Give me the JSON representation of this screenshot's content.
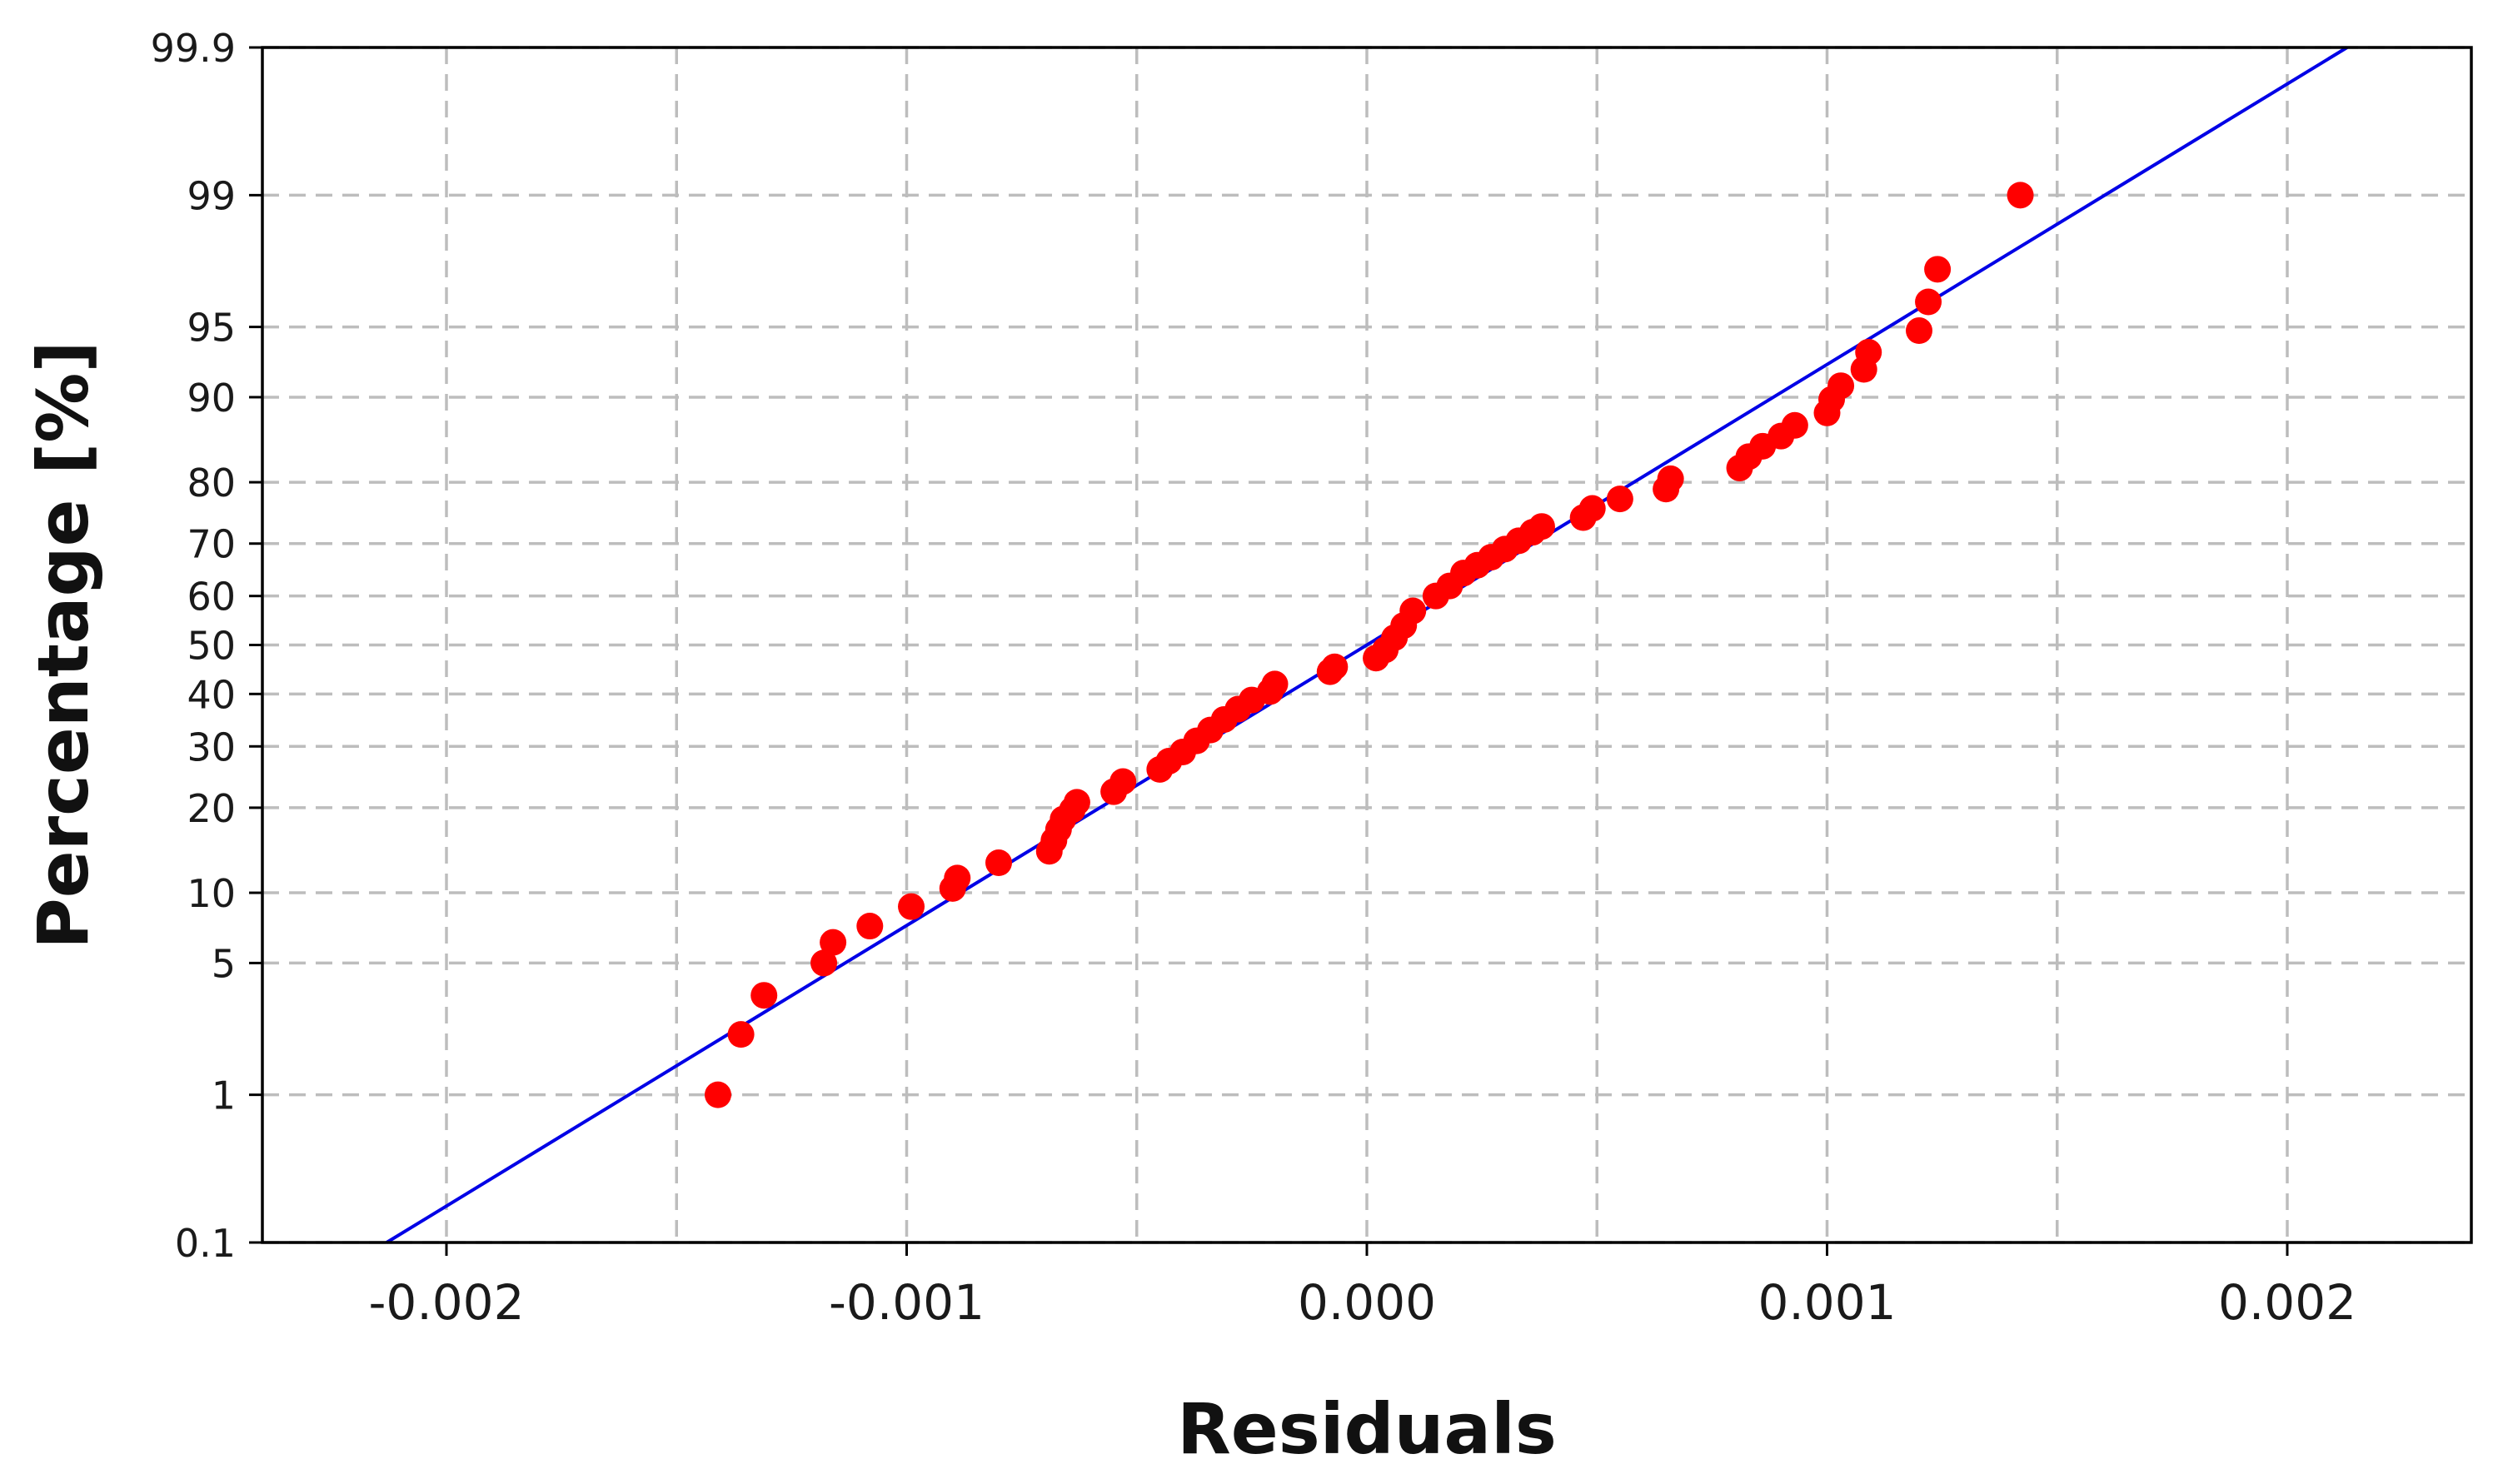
{
  "chart_data": {
    "type": "scatter",
    "title": "",
    "xlabel": "Residuals",
    "ylabel": "Percentage [%]",
    "xlim": [
      -0.0024,
      0.0024
    ],
    "ylim": [
      0.1,
      99.9
    ],
    "y_scale": "normal-probability",
    "grid": true,
    "grid_style": "dashed",
    "x_ticks": [
      -0.002,
      -0.0015,
      -0.001,
      -0.0005,
      0.0,
      0.0005,
      0.001,
      0.0015,
      0.002
    ],
    "x_tick_labels": [
      "-0.002",
      "-0.001",
      "0.000",
      "0.001",
      "0.002"
    ],
    "x_tick_label_values": [
      -0.002,
      -0.001,
      0.0,
      0.001,
      0.002
    ],
    "y_ticks": [
      0.1,
      1,
      5,
      10,
      20,
      30,
      40,
      50,
      60,
      70,
      80,
      90,
      95,
      99,
      99.9
    ],
    "y_tick_labels": [
      "0.1",
      "1",
      "5",
      "10",
      "20",
      "30",
      "40",
      "50",
      "60",
      "70",
      "80",
      "90",
      "95",
      "99",
      "99.9"
    ],
    "colors": {
      "points": "#ff0000",
      "fit_line": "#0000e6",
      "grid": "#bdbdbd",
      "axis": "#000000"
    },
    "series": [
      {
        "type": "line",
        "x": [
          -0.00213,
          0.00213
        ],
        "y": [
          0.1,
          99.9
        ]
      },
      {
        "type": "scatter",
        "x": [
          -0.00141,
          -0.00136,
          -0.00131,
          -0.00118,
          -0.00116,
          -0.00108,
          -0.00099,
          -0.0009,
          -0.00089,
          -0.0008,
          -0.00069,
          -0.00068,
          -0.00067,
          -0.00066,
          -0.00064,
          -0.00063,
          -0.00055,
          -0.00053,
          -0.00045,
          -0.00043,
          -0.0004,
          -0.00037,
          -0.00034,
          -0.00031,
          -0.00028,
          -0.00025,
          -0.00021,
          -0.0002,
          -8e-05,
          -7e-05,
          2e-05,
          4e-05,
          6e-05,
          8e-05,
          0.0001,
          0.00015,
          0.00018,
          0.00021,
          0.00024,
          0.00027,
          0.0003,
          0.00033,
          0.00036,
          0.00038,
          0.00047,
          0.00049,
          0.00055,
          0.00065,
          0.00066,
          0.00081,
          0.00083,
          0.00086,
          0.0009,
          0.00093,
          0.001,
          0.00101,
          0.00103,
          0.00108,
          0.00109,
          0.0012,
          0.00122,
          0.00124,
          0.00142
        ],
        "y": [
          1.0,
          2.2,
          3.5,
          5.0,
          6.2,
          7.3,
          8.8,
          10.4,
          11.4,
          13.0,
          14.3,
          15.6,
          17.0,
          18.4,
          19.7,
          20.8,
          22.4,
          24.0,
          26.0,
          27.4,
          29.0,
          31.0,
          33.0,
          35.0,
          37.0,
          38.8,
          40.5,
          42.0,
          44.5,
          45.5,
          47.3,
          49.0,
          51.5,
          54.0,
          57.0,
          60.0,
          62.0,
          64.5,
          66.0,
          67.5,
          69.0,
          70.5,
          72.0,
          73.0,
          74.5,
          76.0,
          77.5,
          79.0,
          80.5,
          82.0,
          83.5,
          84.8,
          86.0,
          87.2,
          88.5,
          89.8,
          91.0,
          92.3,
          93.5,
          94.8,
          96.2,
          97.4,
          99.0
        ]
      }
    ]
  }
}
